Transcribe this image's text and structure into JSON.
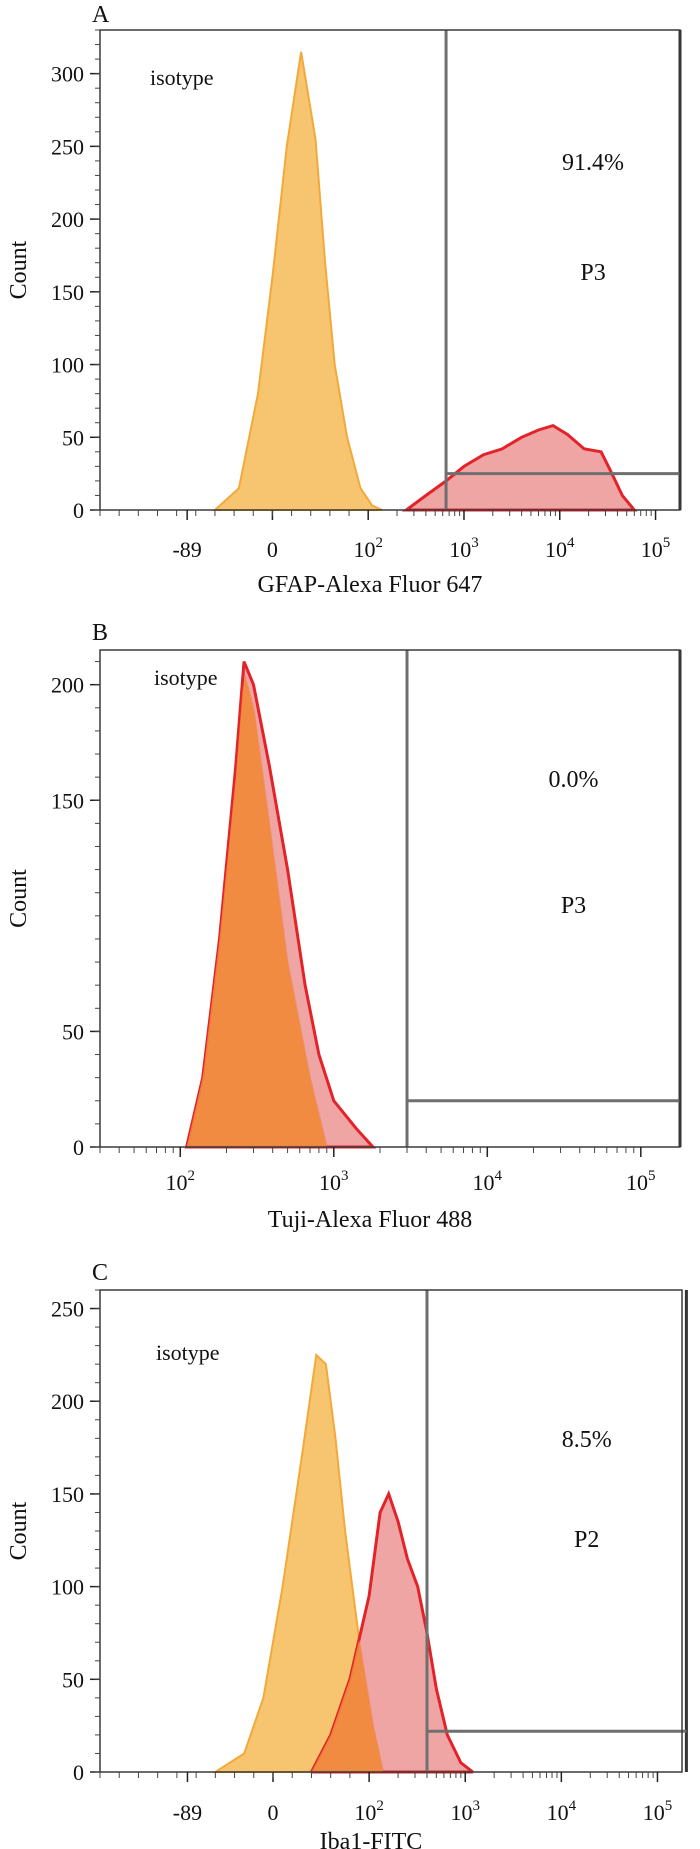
{
  "colors": {
    "isotype_fill": "#f7c267",
    "isotype_edge": "#f3a93a",
    "sample_fill": "#ec8c8c",
    "sample_edge": "#e2232a",
    "overlap_fill": "#f08a3a",
    "gate_line": "#6f6f6f",
    "frame": "#3a3a3a"
  },
  "chart_data": [
    {
      "type": "area",
      "panel_label": "A",
      "xlabel": "GFAP-Alexa Fluor 647",
      "ylabel": "Count",
      "x_scale": "biexponential",
      "xlim": [
        -180,
        180000
      ],
      "ylim": [
        0,
        330
      ],
      "x_tick_labels": [
        "-89",
        "0",
        "10^2",
        "10^3",
        "10^4",
        "10^5"
      ],
      "x_tick_values": [
        -89,
        0,
        100,
        1000,
        10000,
        100000
      ],
      "y_ticks": [
        0,
        50,
        100,
        150,
        200,
        250,
        300
      ],
      "annotation": "isotype",
      "gate": {
        "name": "P3",
        "percent": "91.4%",
        "x_min": 650,
        "x_max": 180000,
        "height_level": 25
      },
      "series": [
        {
          "name": "isotype",
          "role": "isotype",
          "x": [
            -60,
            -35,
            -15,
            0,
            15,
            30,
            45,
            55,
            65,
            78,
            92,
            110,
            140
          ],
          "y": [
            0,
            15,
            80,
            160,
            250,
            315,
            255,
            170,
            100,
            50,
            15,
            3,
            0
          ]
        },
        {
          "role": "sample",
          "x": [
            250,
            400,
            650,
            1000,
            1600,
            2500,
            4000,
            6000,
            8500,
            12000,
            18000,
            27000,
            35000,
            45000,
            60000
          ],
          "y": [
            0,
            10,
            20,
            30,
            38,
            42,
            50,
            55,
            58,
            52,
            42,
            40,
            25,
            10,
            0
          ]
        }
      ]
    },
    {
      "type": "area",
      "panel_label": "B",
      "xlabel": "Tuji-Alexa Fluor 488",
      "ylabel": "Count",
      "x_scale": "log",
      "xlim": [
        30,
        180000
      ],
      "ylim": [
        0,
        215
      ],
      "x_tick_labels": [
        "10^2",
        "10^3",
        "10^4",
        "10^5"
      ],
      "x_tick_values": [
        100,
        1000,
        10000,
        100000
      ],
      "y_ticks": [
        0,
        50,
        150,
        200
      ],
      "annotation": "isotype",
      "gate": {
        "name": "P3",
        "percent": "0.0%",
        "x_min": 3000,
        "x_max": 180000,
        "height_level": 20
      },
      "series": [
        {
          "name": "isotype",
          "role": "isotype",
          "x": [
            110,
            140,
            180,
            230,
            260,
            300,
            380,
            500,
            700,
            900
          ],
          "y": [
            0,
            30,
            90,
            160,
            205,
            190,
            140,
            80,
            30,
            0
          ]
        },
        {
          "role": "sample",
          "x": [
            110,
            140,
            180,
            230,
            260,
            300,
            380,
            500,
            650,
            800,
            1000,
            1400,
            1800
          ],
          "y": [
            0,
            30,
            90,
            165,
            210,
            200,
            165,
            120,
            70,
            40,
            20,
            8,
            0
          ]
        }
      ]
    },
    {
      "type": "area",
      "panel_label": "C",
      "xlabel": "Iba1-FITC",
      "ylabel": "Count",
      "x_scale": "biexponential",
      "xlim": [
        -180,
        180000
      ],
      "ylim": [
        0,
        260
      ],
      "x_tick_labels": [
        "-89",
        "0",
        "10^2",
        "10^3",
        "10^4",
        "10^5"
      ],
      "x_tick_values": [
        -89,
        0,
        100,
        1000,
        10000,
        100000
      ],
      "y_ticks": [
        0,
        50,
        100,
        150,
        200,
        250
      ],
      "annotation": "isotype",
      "gate": {
        "name": "P2",
        "percent": "8.5%",
        "x_min": 400,
        "x_max": 200000,
        "height_level": 22
      },
      "series": [
        {
          "name": "isotype",
          "role": "isotype",
          "x": [
            -60,
            -30,
            -10,
            10,
            30,
            45,
            55,
            65,
            75,
            90,
            110,
            140
          ],
          "y": [
            0,
            10,
            40,
            100,
            170,
            225,
            220,
            180,
            130,
            70,
            25,
            0
          ]
        },
        {
          "role": "sample",
          "x": [
            40,
            60,
            80,
            100,
            130,
            160,
            200,
            250,
            320,
            400,
            500,
            650,
            900,
            1200
          ],
          "y": [
            0,
            20,
            50,
            95,
            140,
            150,
            135,
            115,
            100,
            75,
            45,
            20,
            5,
            0
          ]
        }
      ]
    }
  ]
}
